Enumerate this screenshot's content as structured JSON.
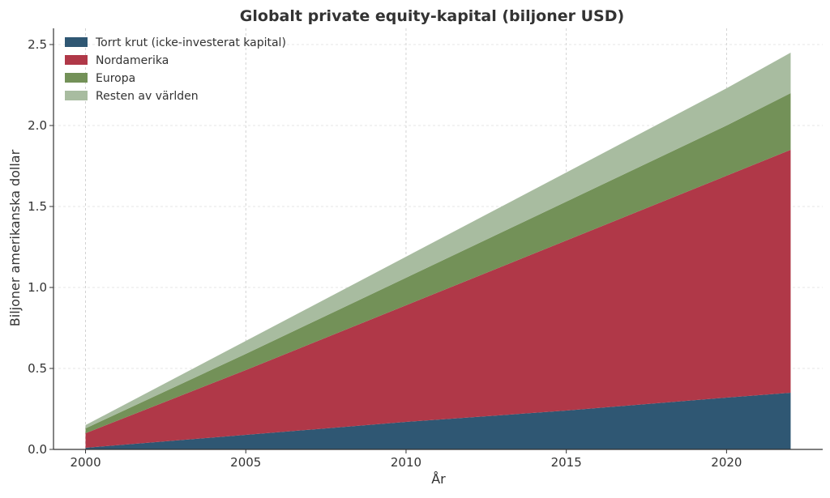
{
  "chart_data": {
    "type": "area",
    "stacked": true,
    "title": "Globalt private equity-kapital (biljoner USD)",
    "xlabel": "År",
    "ylabel": "Biljoner amerikanska dollar",
    "xlim": [
      1999,
      2023
    ],
    "ylim": [
      0,
      2.6
    ],
    "xticks": [
      2000,
      2005,
      2010,
      2015,
      2020
    ],
    "yticks": [
      0.0,
      0.5,
      1.0,
      1.5,
      2.0,
      2.5
    ],
    "ytick_labels": [
      "0.0",
      "0.5",
      "1.0",
      "1.5",
      "2.0",
      "2.5"
    ],
    "x": [
      2000,
      2005,
      2010,
      2015,
      2020,
      2022
    ],
    "series": [
      {
        "name": "Torrt krut (icke-investerat kapital)",
        "color": "#2f5773",
        "values": [
          0.01,
          0.09,
          0.17,
          0.24,
          0.32,
          0.35
        ]
      },
      {
        "name": "Nordamerika",
        "color": "#b03848",
        "values": [
          0.09,
          0.4,
          0.72,
          1.05,
          1.37,
          1.5
        ]
      },
      {
        "name": "Europa",
        "color": "#739158",
        "values": [
          0.03,
          0.1,
          0.17,
          0.24,
          0.31,
          0.35
        ]
      },
      {
        "name": "Resten av världen",
        "color": "#a8bca0",
        "values": [
          0.02,
          0.08,
          0.13,
          0.18,
          0.23,
          0.25
        ]
      }
    ],
    "grid": true,
    "legend_position": "top-left"
  }
}
